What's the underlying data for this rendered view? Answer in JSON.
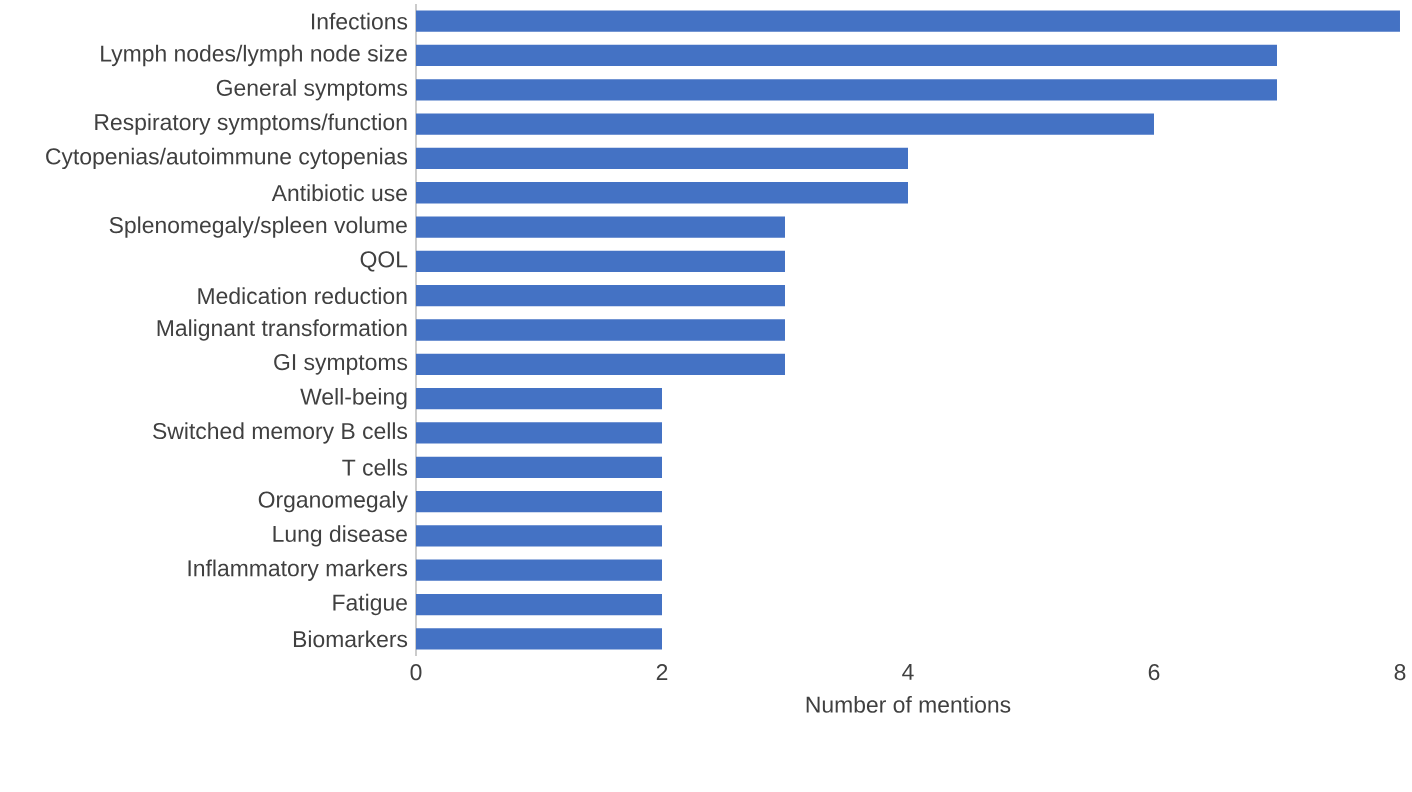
{
  "chart_data": {
    "type": "bar",
    "orientation": "horizontal",
    "xlabel": "Number of mentions",
    "categories": [
      "Infections",
      "Lymph nodes/lymph node size",
      "General symptoms",
      "Respiratory symptoms/function",
      "Cytopenias/autoimmune cytopenias",
      "Antibiotic use",
      "Splenomegaly/spleen volume",
      "QOL",
      "Medication reduction",
      "Malignant transformation",
      "GI symptoms",
      "Well-being",
      "Switched memory B cells",
      "T cells",
      "Organomegaly",
      "Lung disease",
      "Inflammatory markers",
      "Fatigue",
      "Biomarkers"
    ],
    "values": [
      8,
      7,
      7,
      6,
      4,
      4,
      3,
      3,
      3,
      3,
      3,
      2,
      2,
      2,
      2,
      2,
      2,
      2,
      2
    ],
    "color": "#4472c4",
    "xlim": [
      0,
      8
    ],
    "xticks": [
      0,
      2,
      4,
      6,
      8
    ]
  }
}
